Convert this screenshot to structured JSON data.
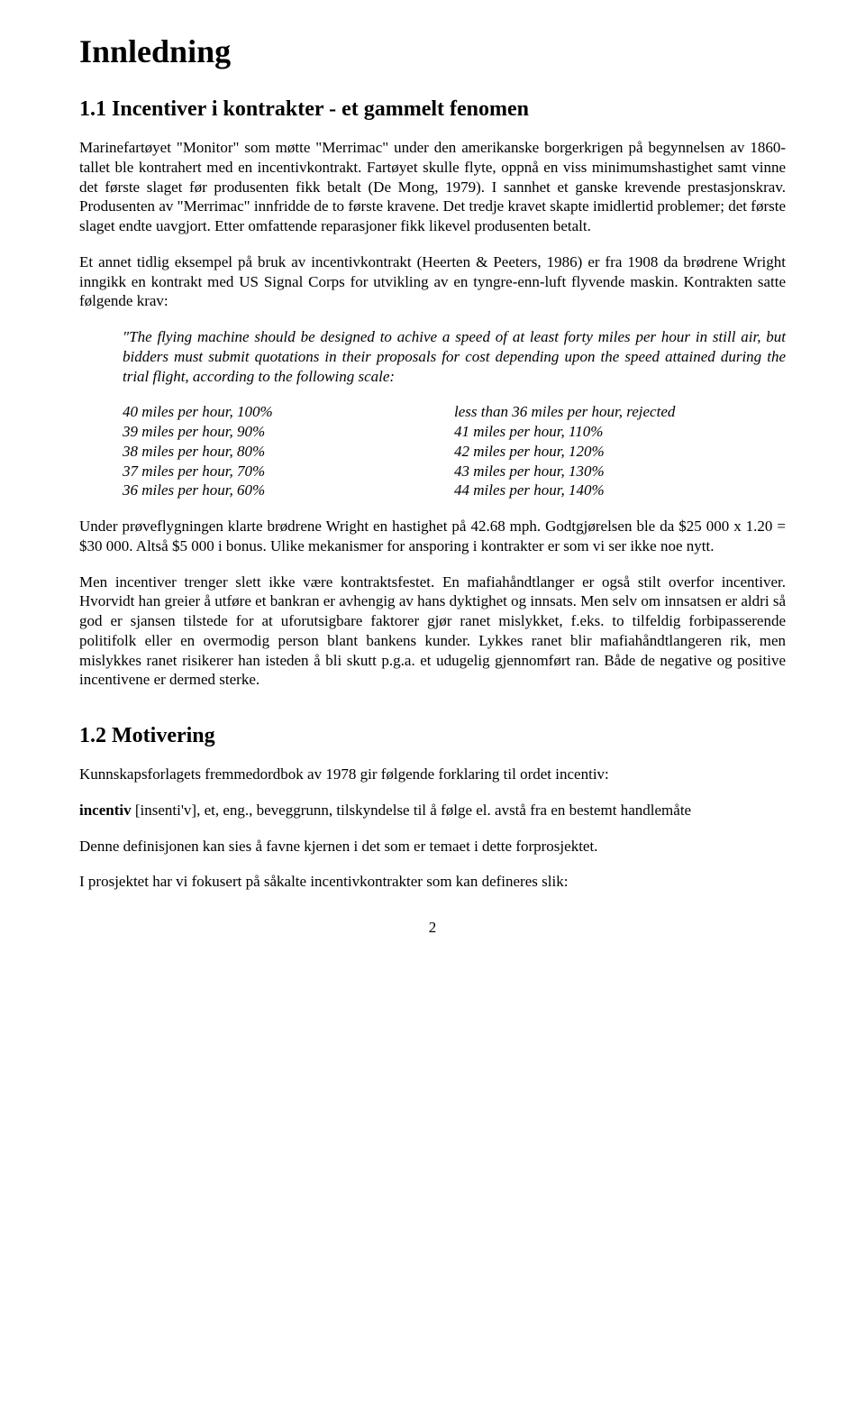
{
  "title": "Innledning",
  "section1": {
    "heading": "1.1   Incentiver i kontrakter - et gammelt fenomen",
    "p1": "Marinefartøyet \"Monitor\" som møtte \"Merrimac\" under den amerikanske borgerkrigen på begynnelsen av 1860-tallet ble kontrahert med en incentivkontrakt. Fartøyet skulle flyte, oppnå en viss minimumshastighet samt vinne det første slaget før produsenten fikk betalt (De Mong, 1979). I sannhet et ganske krevende prestasjonskrav. Produsenten av \"Merrimac\" innfridde de to første kravene. Det tredje kravet skapte imidlertid problemer; det første slaget endte uavgjort. Etter omfattende reparasjoner fikk likevel produsenten betalt.",
    "p2": "Et annet tidlig eksempel på bruk av incentivkontrakt (Heerten & Peeters, 1986) er fra 1908 da brødrene Wright inngikk en kontrakt med US Signal Corps for utvikling av en tyngre-enn-luft flyvende maskin. Kontrakten satte følgende krav:",
    "quote": "\"The flying machine should be designed to achive a speed of at least forty miles per hour in still air, but bidders must submit quotations in their proposals for cost depending upon the speed attained during the trial flight, according to the following scale:",
    "table_left": [
      "40 miles per hour, 100%",
      "39 miles per hour, 90%",
      "38 miles per hour, 80%",
      "37 miles per hour, 70%",
      "36 miles per hour, 60%"
    ],
    "table_right": [
      "less than 36 miles per hour, rejected",
      "41 miles per hour, 110%",
      "42 miles per hour, 120%",
      "43 miles per hour, 130%",
      "44 miles per hour, 140%"
    ],
    "p3": "Under prøveflygningen klarte brødrene Wright en hastighet på 42.68 mph. Godtgjørelsen ble da $25 000 x 1.20 = $30 000. Altså $5 000 i bonus. Ulike mekanismer for ansporing i kontrakter er som vi ser ikke noe nytt.",
    "p4": "Men incentiver trenger slett ikke være kontraktsfestet. En mafiahåndtlanger er også stilt overfor incentiver. Hvorvidt han greier å utføre et bankran er avhengig av hans dyktighet og innsats. Men selv om innsatsen er aldri så god er sjansen tilstede for at uforutsigbare faktorer gjør ranet mislykket, f.eks. to tilfeldig forbipasserende politifolk eller en overmodig person blant bankens kunder. Lykkes ranet blir mafiahåndtlangeren rik, men  mislykkes ranet risikerer han isteden å bli skutt p.g.a. et udugelig gjennomført ran. Både de negative og positive incentivene er dermed sterke."
  },
  "section2": {
    "heading": "1.2   Motivering",
    "p1": "Kunnskapsforlagets fremmedordbok av 1978 gir følgende forklaring til ordet incentiv:",
    "p2_prefix_bold": "incentiv",
    "p2_rest": " [insenti'v], et, eng., beveggrunn, tilskyndelse til å følge el. avstå fra en bestemt handlemåte",
    "p3": "Denne definisjonen kan sies å favne kjernen i det som er temaet i dette forprosjektet.",
    "p4": "I prosjektet har vi fokusert på såkalte incentivkontrakter som kan defineres slik:"
  },
  "page_number": "2"
}
